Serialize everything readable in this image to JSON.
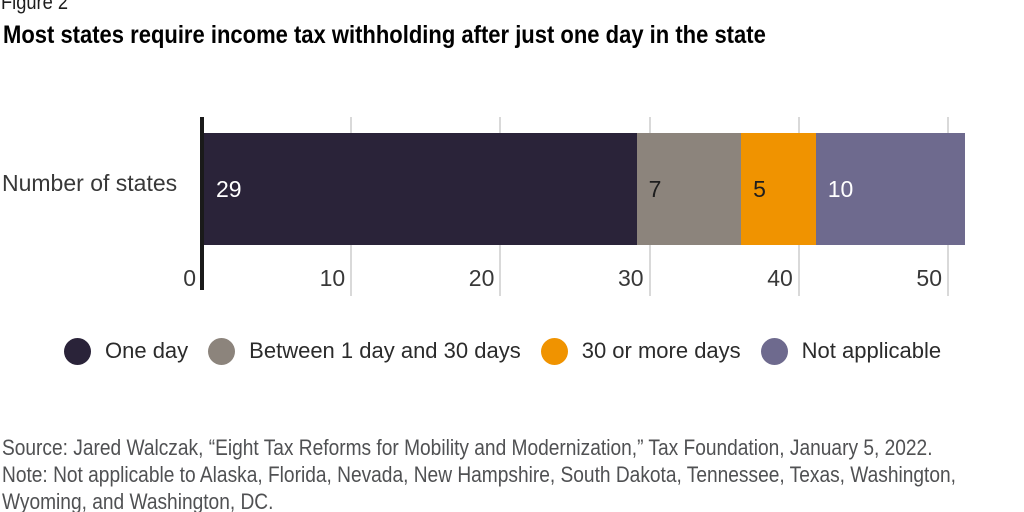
{
  "figure_label": "Figure 2",
  "title": "Most states require income tax withholding after just one day in the state",
  "chart_data": {
    "type": "bar",
    "orientation": "horizontal",
    "stacked": true,
    "row_label": "Number of states",
    "series": [
      {
        "name": "One day",
        "value": 29,
        "color": "#2A2339",
        "label_color": "#FFFFFF"
      },
      {
        "name": "Between 1 day and 30 days",
        "value": 7,
        "color": "#8C847C",
        "label_color": "#1E1E1E"
      },
      {
        "name": "30 or more days",
        "value": 5,
        "color": "#F09300",
        "label_color": "#1E1E1E"
      },
      {
        "name": "Not applicable",
        "value": 10,
        "color": "#6E6A8E",
        "label_color": "#FFFFFF"
      }
    ],
    "x_ticks": [
      0,
      10,
      20,
      30,
      40,
      50
    ],
    "xlim": [
      0,
      51
    ],
    "grid": true,
    "legend_position": "bottom",
    "axis_color": "#1A1A1A",
    "gridline_color": "#D9D9D9"
  },
  "footer": {
    "source": "Source: Jared Walczak, “Eight Tax Reforms for Mobility and Modernization,” Tax Foundation, January 5, 2022.",
    "note_lines": [
      "Note: Not applicable to Alaska, Florida, Nevada, New Hampshire, South Dakota, Tennessee, Texas, Washington,",
      "Wyoming, and Washington, DC."
    ]
  }
}
